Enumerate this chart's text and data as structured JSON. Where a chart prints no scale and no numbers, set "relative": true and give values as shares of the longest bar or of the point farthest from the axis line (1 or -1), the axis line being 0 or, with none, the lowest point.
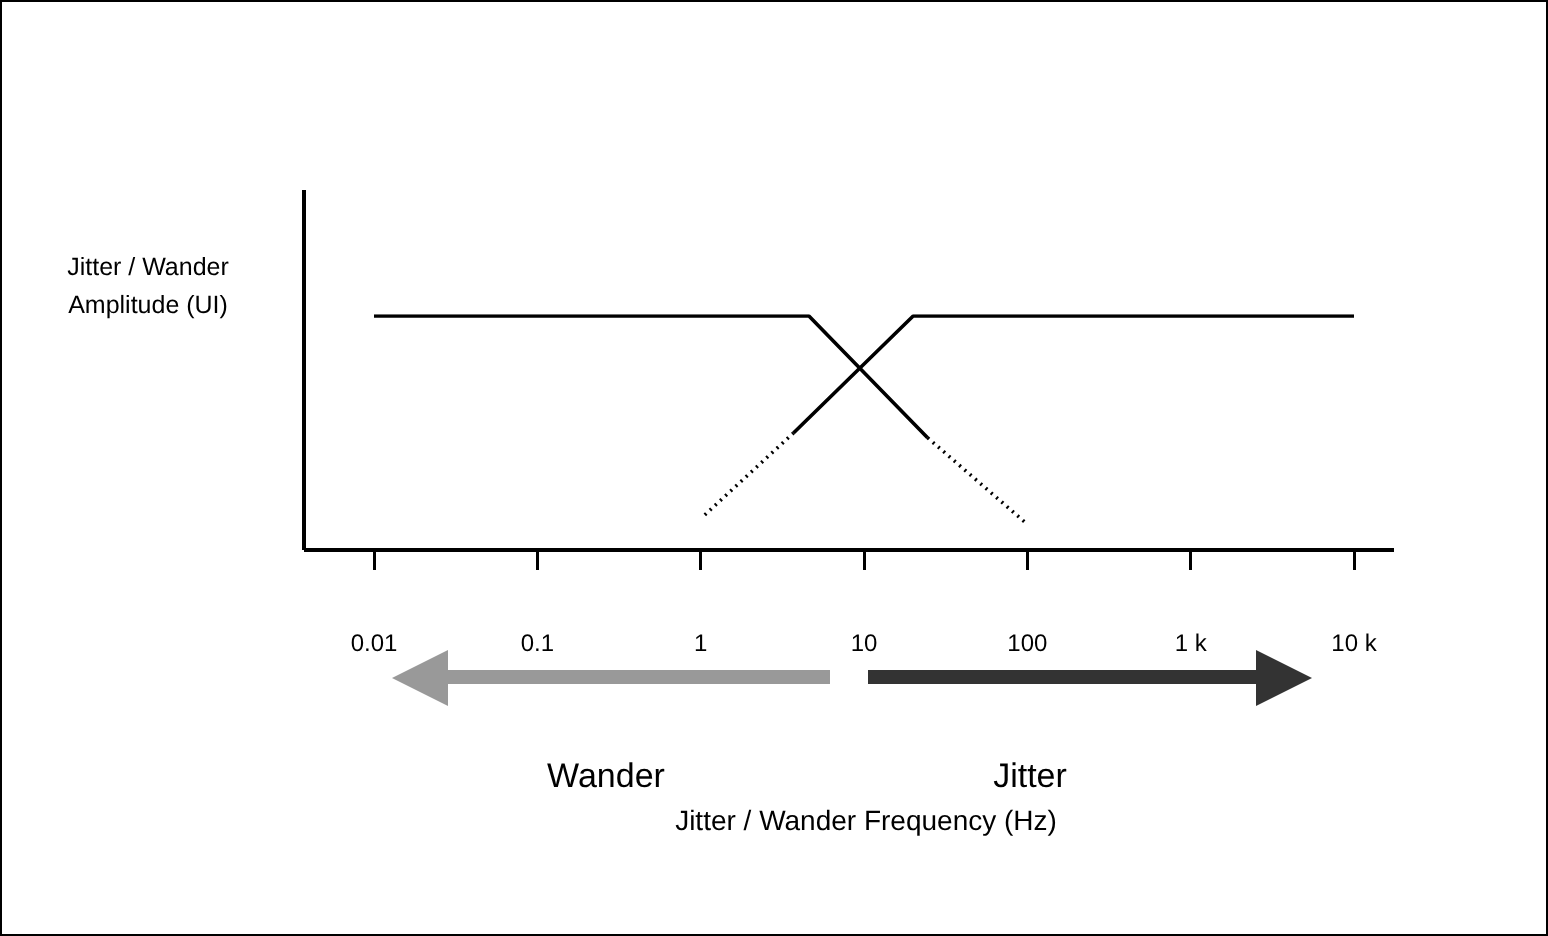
{
  "chart_data": {
    "type": "line",
    "ylabel": "Jitter / Wander Amplitude (UI)",
    "log": "x",
    "relative": true,
    "grid": false,
    "legend": false,
    "marker": "none",
    "xlim": [
      0.01,
      10000
    ],
    "xticks": [
      0.01,
      0.1,
      1,
      10,
      100,
      {
        "value": 1000,
        "label": "1 k"
      },
      {
        "value": 10000,
        "label": "10 k"
      }
    ],
    "series": [
      {
        "color": "#000000",
        "line_style": "solid",
        "x": [
          0.01,
          4.6,
          24.5
        ],
        "values": [
          1,
          1,
          0.48
        ]
      },
      {
        "color": "#000000",
        "line_style": "dotted",
        "x": [
          24.5,
          100
        ],
        "values": [
          0.48,
          0.11
        ]
      },
      {
        "color": "#000000",
        "line_style": "dotted",
        "x": [
          1.06,
          3.7
        ],
        "values": [
          0.15,
          0.5
        ]
      },
      {
        "color": "#000000",
        "line_style": "solid",
        "x": [
          3.7,
          20,
          10000
        ],
        "values": [
          0.5,
          1,
          1
        ]
      }
    ],
    "annotations": [
      {
        "text": "Wander"
      },
      {
        "text": "Jitter"
      },
      {
        "text": "Jitter / Wander Frequency (Hz)"
      }
    ]
  }
}
